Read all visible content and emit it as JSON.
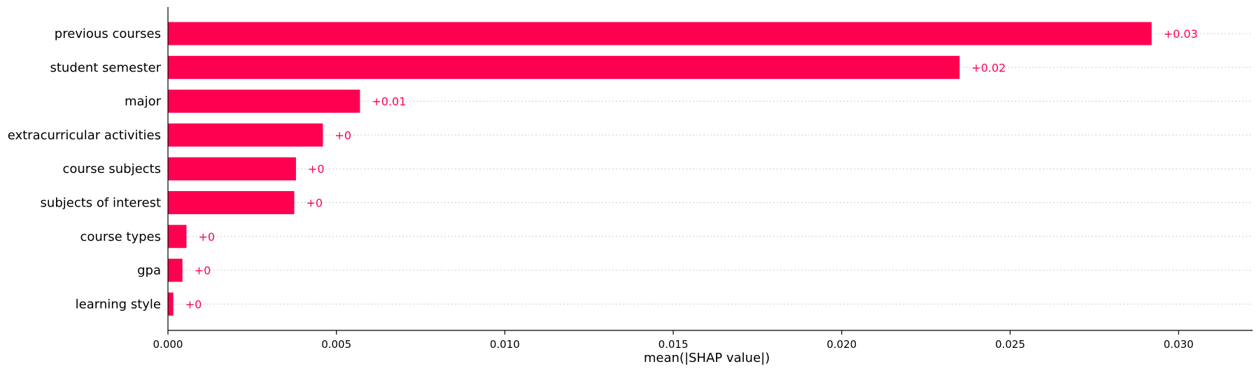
{
  "chart_data": {
    "type": "bar",
    "orientation": "horizontal",
    "categories": [
      "previous courses",
      "student semester",
      "major",
      "extracurricular activities",
      "course subjects",
      "subjects of interest",
      "course types",
      "gpa",
      "learning style"
    ],
    "values": [
      0.0292,
      0.0235,
      0.0057,
      0.0046,
      0.0038,
      0.00375,
      0.00055,
      0.00043,
      0.00016
    ],
    "value_labels": [
      "+0.03",
      "+0.02",
      "+0.01",
      "+0",
      "+0",
      "+0",
      "+0",
      "+0",
      "+0"
    ],
    "xlabel": "mean(|SHAP value|)",
    "ylabel": "",
    "title": "",
    "xlim": [
      0,
      0.0322
    ],
    "xticks": [
      0,
      0.005,
      0.01,
      0.015,
      0.02,
      0.025,
      0.03
    ],
    "xtick_labels": [
      "0.000",
      "0.005",
      "0.010",
      "0.015",
      "0.020",
      "0.025",
      "0.030"
    ],
    "grid": "horizontal dotted lines behind each bar",
    "bar_color": "#ff0051",
    "label_color": "#ff0051"
  }
}
